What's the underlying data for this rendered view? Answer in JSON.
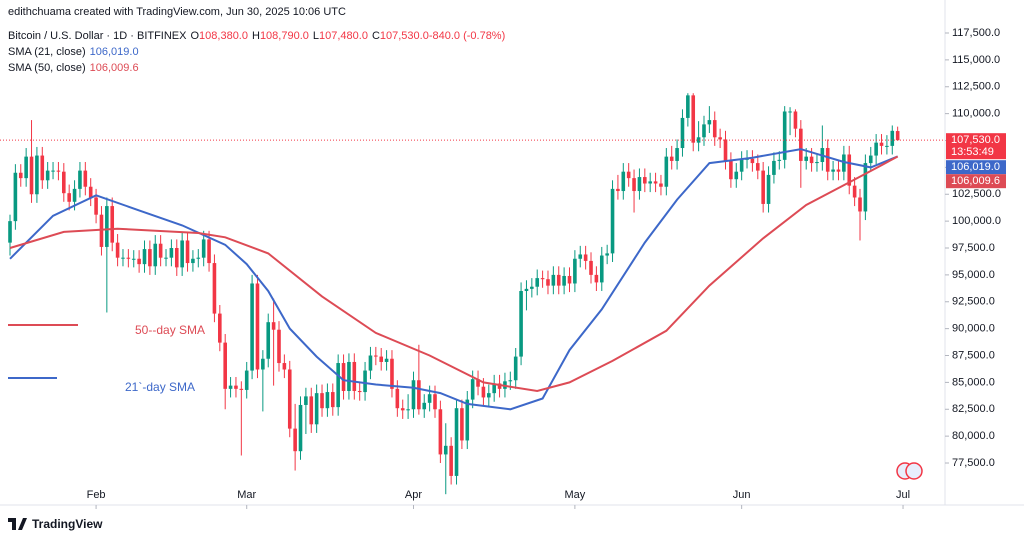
{
  "chart_data": {
    "type": "candlestick",
    "header": "edithchuama created with TradingView.com, Jun 30, 2025 10:06 UTC",
    "title": "Bitcoin / U.S. Dollar · 1D · BITFINEX",
    "ohlc_header": [
      {
        "key": "O",
        "value": "108,380.0"
      },
      {
        "key": "H",
        "value": "108,790.0"
      },
      {
        "key": "L",
        "value": "107,480.0"
      },
      {
        "key": "C",
        "value": "107,530.0"
      },
      {
        "key": "",
        "value": "-840.0 (-0.78%)"
      }
    ],
    "up_color": "#089981",
    "down_color": "#f23645",
    "candles": [
      [
        98000,
        100600,
        96800,
        100000
      ],
      [
        100000,
        105300,
        99200,
        104500
      ],
      [
        104500,
        105300,
        103200,
        104000
      ],
      [
        104000,
        106800,
        103200,
        106000
      ],
      [
        106000,
        109400,
        101700,
        102500
      ],
      [
        102500,
        106900,
        101700,
        106100
      ],
      [
        106100,
        106900,
        103000,
        103800
      ],
      [
        103800,
        105500,
        103000,
        104700
      ],
      [
        104700,
        105500,
        103900,
        104700
      ],
      [
        104700,
        105500,
        103800,
        104600
      ],
      [
        104600,
        105400,
        101800,
        102600
      ],
      [
        102600,
        103400,
        101000,
        101800
      ],
      [
        101800,
        103800,
        101000,
        103000
      ],
      [
        103000,
        105500,
        102200,
        104700
      ],
      [
        104700,
        105500,
        102400,
        103200
      ],
      [
        103200,
        104000,
        101400,
        102200
      ],
      [
        102200,
        103000,
        99800,
        100600
      ],
      [
        100600,
        101400,
        96800,
        97600
      ],
      [
        97600,
        102200,
        91500,
        101400
      ],
      [
        101400,
        102200,
        97200,
        98000
      ],
      [
        98000,
        98800,
        95800,
        96600
      ],
      [
        96600,
        97400,
        95800,
        96600
      ],
      [
        96600,
        97400,
        95700,
        96500
      ],
      [
        96500,
        97300,
        95700,
        96500
      ],
      [
        96500,
        97300,
        95200,
        96000
      ],
      [
        96000,
        98200,
        95200,
        97400
      ],
      [
        97400,
        98200,
        95000,
        95800
      ],
      [
        95800,
        98700,
        95000,
        97900
      ],
      [
        97900,
        98700,
        95800,
        96600
      ],
      [
        96600,
        97400,
        95800,
        96600
      ],
      [
        96600,
        98300,
        95800,
        97500
      ],
      [
        97500,
        98300,
        94900,
        95700
      ],
      [
        95700,
        99000,
        94900,
        98200
      ],
      [
        98200,
        99000,
        95300,
        96100
      ],
      [
        96100,
        97300,
        95300,
        96500
      ],
      [
        96500,
        97400,
        95700,
        96600
      ],
      [
        96600,
        99100,
        95800,
        98300
      ],
      [
        98300,
        99100,
        95300,
        96100
      ],
      [
        96100,
        96900,
        90600,
        91400
      ],
      [
        91400,
        92200,
        87900,
        88700
      ],
      [
        88700,
        89500,
        82500,
        84400
      ],
      [
        84400,
        85500,
        83600,
        84700
      ],
      [
        84700,
        85500,
        83600,
        84400
      ],
      [
        84400,
        85100,
        78200,
        84300
      ],
      [
        84300,
        86900,
        83500,
        86100
      ],
      [
        86100,
        95000,
        85300,
        94200
      ],
      [
        94200,
        95000,
        85400,
        86200
      ],
      [
        86200,
        88000,
        82300,
        87200
      ],
      [
        87200,
        91400,
        86400,
        90600
      ],
      [
        90600,
        92800,
        84700,
        89900
      ],
      [
        89900,
        90700,
        86000,
        86800
      ],
      [
        86800,
        87600,
        85400,
        86200
      ],
      [
        86200,
        87000,
        79900,
        80700
      ],
      [
        80700,
        83000,
        76800,
        78600
      ],
      [
        78600,
        83700,
        77800,
        82900
      ],
      [
        82900,
        84500,
        80200,
        83700
      ],
      [
        83700,
        84500,
        80300,
        81100
      ],
      [
        81100,
        84800,
        80300,
        84000
      ],
      [
        84000,
        84800,
        81800,
        82600
      ],
      [
        82600,
        84900,
        81800,
        84100
      ],
      [
        84100,
        84900,
        81900,
        82700
      ],
      [
        82700,
        87600,
        81900,
        86800
      ],
      [
        86800,
        87600,
        83400,
        84200
      ],
      [
        84200,
        87700,
        83400,
        86900
      ],
      [
        86900,
        87700,
        83400,
        84200
      ],
      [
        84200,
        85000,
        83300,
        84100
      ],
      [
        84100,
        86900,
        83300,
        86100
      ],
      [
        86100,
        88300,
        85300,
        87500
      ],
      [
        87500,
        88300,
        86600,
        87400
      ],
      [
        87400,
        88200,
        86100,
        86900
      ],
      [
        86900,
        88000,
        86100,
        87200
      ],
      [
        87200,
        88000,
        83600,
        84400
      ],
      [
        84400,
        85200,
        81800,
        82600
      ],
      [
        82600,
        83400,
        81600,
        82400
      ],
      [
        82400,
        83900,
        81600,
        82500
      ],
      [
        82500,
        86000,
        81700,
        85200
      ],
      [
        85200,
        88500,
        82000,
        82500
      ],
      [
        82500,
        83900,
        81700,
        83100
      ],
      [
        83100,
        84700,
        82300,
        83900
      ],
      [
        83900,
        84700,
        81700,
        82500
      ],
      [
        82500,
        83300,
        77500,
        78300
      ],
      [
        78300,
        81200,
        74600,
        79100
      ],
      [
        79100,
        79900,
        75500,
        76300
      ],
      [
        76300,
        83400,
        75500,
        82600
      ],
      [
        82600,
        83400,
        78800,
        79600
      ],
      [
        79600,
        84200,
        78800,
        83400
      ],
      [
        83400,
        86100,
        82600,
        85300
      ],
      [
        85300,
        86100,
        83800,
        84600
      ],
      [
        84600,
        85400,
        82800,
        83600
      ],
      [
        83600,
        84800,
        82800,
        84000
      ],
      [
        84000,
        85700,
        83200,
        84900
      ],
      [
        84900,
        85700,
        83600,
        84400
      ],
      [
        84400,
        85900,
        83600,
        85100
      ],
      [
        85100,
        86000,
        84300,
        85200
      ],
      [
        85200,
        88200,
        84400,
        87400
      ],
      [
        87400,
        94300,
        86600,
        93500
      ],
      [
        93500,
        94500,
        91700,
        93700
      ],
      [
        93700,
        94700,
        92900,
        93900
      ],
      [
        93900,
        95500,
        93100,
        94700
      ],
      [
        94700,
        95400,
        93800,
        94600
      ],
      [
        94600,
        95400,
        93200,
        94000
      ],
      [
        94000,
        95800,
        93200,
        95000
      ],
      [
        95000,
        95800,
        93200,
        94000
      ],
      [
        94000,
        95700,
        93200,
        94900
      ],
      [
        94900,
        95700,
        93400,
        94200
      ],
      [
        94200,
        97300,
        93400,
        96500
      ],
      [
        96500,
        97700,
        95700,
        96900
      ],
      [
        96900,
        97700,
        95500,
        96300
      ],
      [
        96300,
        97100,
        94200,
        95000
      ],
      [
        95000,
        95800,
        93500,
        94300
      ],
      [
        94300,
        97600,
        93500,
        96800
      ],
      [
        96800,
        97800,
        96000,
        97000
      ],
      [
        97000,
        103800,
        96200,
        103000
      ],
      [
        103000,
        104300,
        102000,
        102800
      ],
      [
        102800,
        105400,
        102000,
        104600
      ],
      [
        104600,
        105400,
        103200,
        104000
      ],
      [
        104000,
        104800,
        100800,
        102800
      ],
      [
        102800,
        104900,
        102000,
        104100
      ],
      [
        104100,
        104900,
        102700,
        103500
      ],
      [
        103500,
        104500,
        102700,
        103700
      ],
      [
        103700,
        104500,
        102700,
        103500
      ],
      [
        103500,
        104300,
        102400,
        103200
      ],
      [
        103200,
        106800,
        102400,
        106000
      ],
      [
        106000,
        107000,
        104800,
        105600
      ],
      [
        105600,
        107600,
        104800,
        106800
      ],
      [
        106800,
        110400,
        106000,
        109600
      ],
      [
        109600,
        111900,
        108800,
        111700
      ],
      [
        111700,
        111900,
        106500,
        107300
      ],
      [
        107300,
        109300,
        106500,
        107800
      ],
      [
        107800,
        109800,
        107000,
        109000
      ],
      [
        109000,
        110700,
        108200,
        109400
      ],
      [
        109400,
        110200,
        107000,
        107800
      ],
      [
        107800,
        108600,
        106800,
        107600
      ],
      [
        107600,
        108400,
        104800,
        105600
      ],
      [
        105600,
        106400,
        103100,
        103900
      ],
      [
        103900,
        105400,
        103100,
        104600
      ],
      [
        104600,
        106500,
        103800,
        105700
      ],
      [
        105700,
        106600,
        104900,
        105800
      ],
      [
        105800,
        106600,
        104600,
        105400
      ],
      [
        105400,
        106200,
        103900,
        104700
      ],
      [
        104700,
        105500,
        100800,
        101600
      ],
      [
        101600,
        105100,
        100800,
        104300
      ],
      [
        104300,
        106400,
        103500,
        105600
      ],
      [
        105600,
        106500,
        104800,
        105700
      ],
      [
        105700,
        110700,
        104900,
        110200
      ],
      [
        110200,
        110600,
        108000,
        110200
      ],
      [
        110200,
        110400,
        107800,
        108600
      ],
      [
        108600,
        109400,
        103100,
        105600
      ],
      [
        105600,
        106800,
        104800,
        106000
      ],
      [
        106000,
        106800,
        104600,
        105400
      ],
      [
        105400,
        106300,
        104600,
        105500
      ],
      [
        105500,
        108900,
        104700,
        106800
      ],
      [
        106800,
        107600,
        103800,
        104600
      ],
      [
        104600,
        105600,
        103800,
        104800
      ],
      [
        104800,
        105600,
        103800,
        104600
      ],
      [
        104600,
        107000,
        103800,
        106200
      ],
      [
        106200,
        107000,
        102500,
        103300
      ],
      [
        103300,
        104100,
        101400,
        102200
      ],
      [
        102200,
        103000,
        98200,
        100900
      ],
      [
        100900,
        106200,
        100100,
        105400
      ],
      [
        105400,
        106900,
        104600,
        106100
      ],
      [
        106100,
        108100,
        105300,
        107300
      ],
      [
        107300,
        108100,
        106200,
        107000
      ],
      [
        107000,
        108000,
        106200,
        107000
      ],
      [
        107000,
        108900,
        106200,
        108400
      ],
      [
        108380,
        108790,
        107480,
        107530
      ]
    ],
    "series": [
      {
        "name": "SMA (21, close)",
        "color": "#3d68c9",
        "badge": "106,019.0",
        "annotation": "21`-day SMA",
        "x": [
          0,
          8,
          16,
          24,
          32,
          40,
          44,
          48,
          52,
          57,
          62,
          68,
          75,
          80,
          85,
          93,
          99,
          104,
          110,
          118,
          124,
          130,
          138,
          147,
          155,
          160,
          165
        ],
        "values": [
          96500,
          100500,
          102400,
          101000,
          99600,
          97800,
          96000,
          93500,
          90000,
          87400,
          85200,
          84800,
          84500,
          84000,
          83000,
          82500,
          83500,
          88000,
          91800,
          98000,
          102000,
          105400,
          105900,
          106700,
          105500,
          105000,
          106019
        ]
      },
      {
        "name": "SMA (50, close)",
        "color": "#dd4b55",
        "badge": "106,009.6",
        "annotation": "50--day SMA",
        "x": [
          0,
          10,
          20,
          35,
          40,
          48,
          58,
          68,
          78,
          88,
          98,
          104,
          112,
          122,
          130,
          140,
          148,
          156,
          162,
          165
        ],
        "values": [
          97500,
          99000,
          99300,
          98900,
          98500,
          97000,
          93000,
          89600,
          87500,
          85000,
          84200,
          85000,
          87000,
          89800,
          94000,
          98400,
          101500,
          103600,
          105200,
          106009.6
        ]
      }
    ],
    "last_price": {
      "value": 107530,
      "label": "107,530.0",
      "countdown": "13:53:49"
    },
    "ylim": [
      74060,
      120570
    ],
    "yticks": [
      {
        "value": 77500,
        "label": "77,500.0"
      },
      {
        "value": 80000,
        "label": "80,000.0"
      },
      {
        "value": 82500,
        "label": "82,500.0"
      },
      {
        "value": 85000,
        "label": "85,000.0"
      },
      {
        "value": 87500,
        "label": "87,500.0"
      },
      {
        "value": 90000,
        "label": "90,000.0"
      },
      {
        "value": 92500,
        "label": "92,500.0"
      },
      {
        "value": 95000,
        "label": "95,000.0"
      },
      {
        "value": 97500,
        "label": "97,500.0"
      },
      {
        "value": 100000,
        "label": "100,000.0"
      },
      {
        "value": 102500,
        "label": "102,500.0"
      },
      {
        "value": 105000,
        "label": "105,000.0"
      },
      {
        "value": 107500,
        "label": "107,500.0"
      },
      {
        "value": 110000,
        "label": "110,000.0"
      },
      {
        "value": 112500,
        "label": "112,500.0"
      },
      {
        "value": 115000,
        "label": "115,000.0"
      },
      {
        "value": 117500,
        "label": "117,500.0"
      }
    ],
    "xlim": [
      -1.86,
      173.8
    ],
    "xticks": [
      {
        "value": 16,
        "label": "Feb"
      },
      {
        "value": 44,
        "label": "Mar"
      },
      {
        "value": 75,
        "label": "Apr"
      },
      {
        "value": 105,
        "label": "May"
      },
      {
        "value": 136,
        "label": "Jun"
      },
      {
        "value": 166,
        "label": "Jul"
      }
    ],
    "footer": "TradingView"
  }
}
